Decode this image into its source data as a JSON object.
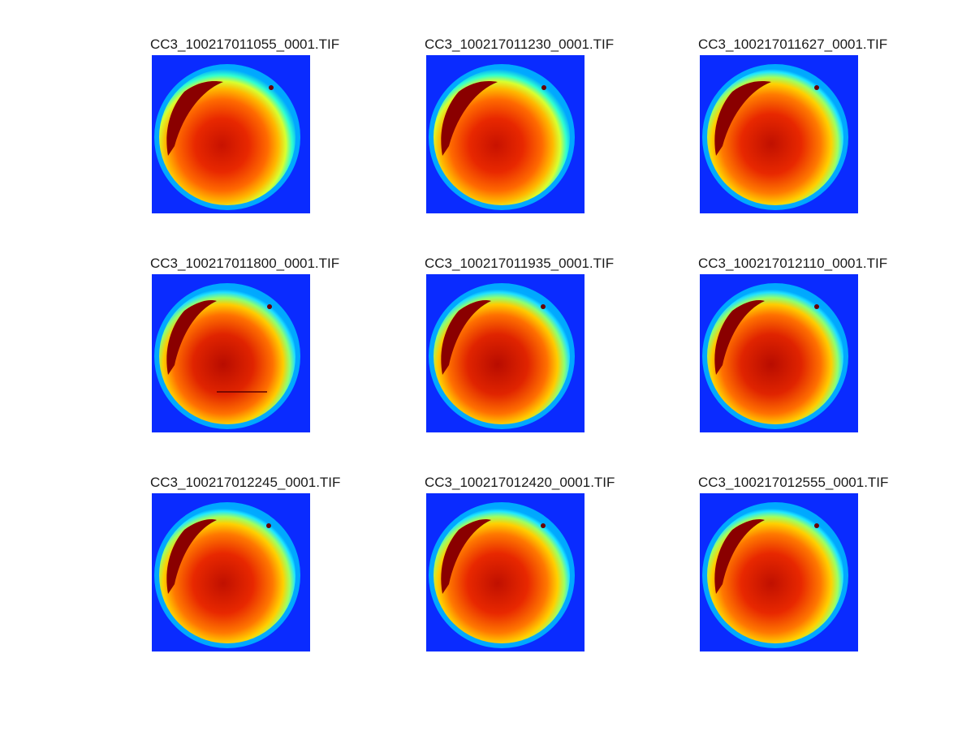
{
  "figure": {
    "colormap": "jet",
    "background_color": "#ffffff",
    "panels": [
      {
        "title": "CC3_100217011055_0001.TIF"
      },
      {
        "title": "CC3_100217011230_0001.TIF"
      },
      {
        "title": "CC3_100217011627_0001.TIF"
      },
      {
        "title": "CC3_100217011800_0001.TIF"
      },
      {
        "title": "CC3_100217011935_0001.TIF"
      },
      {
        "title": "CC3_100217012110_0001.TIF"
      },
      {
        "title": "CC3_100217012245_0001.TIF"
      },
      {
        "title": "CC3_100217012420_0001.TIF"
      },
      {
        "title": "CC3_100217012555_0001.TIF"
      }
    ]
  }
}
